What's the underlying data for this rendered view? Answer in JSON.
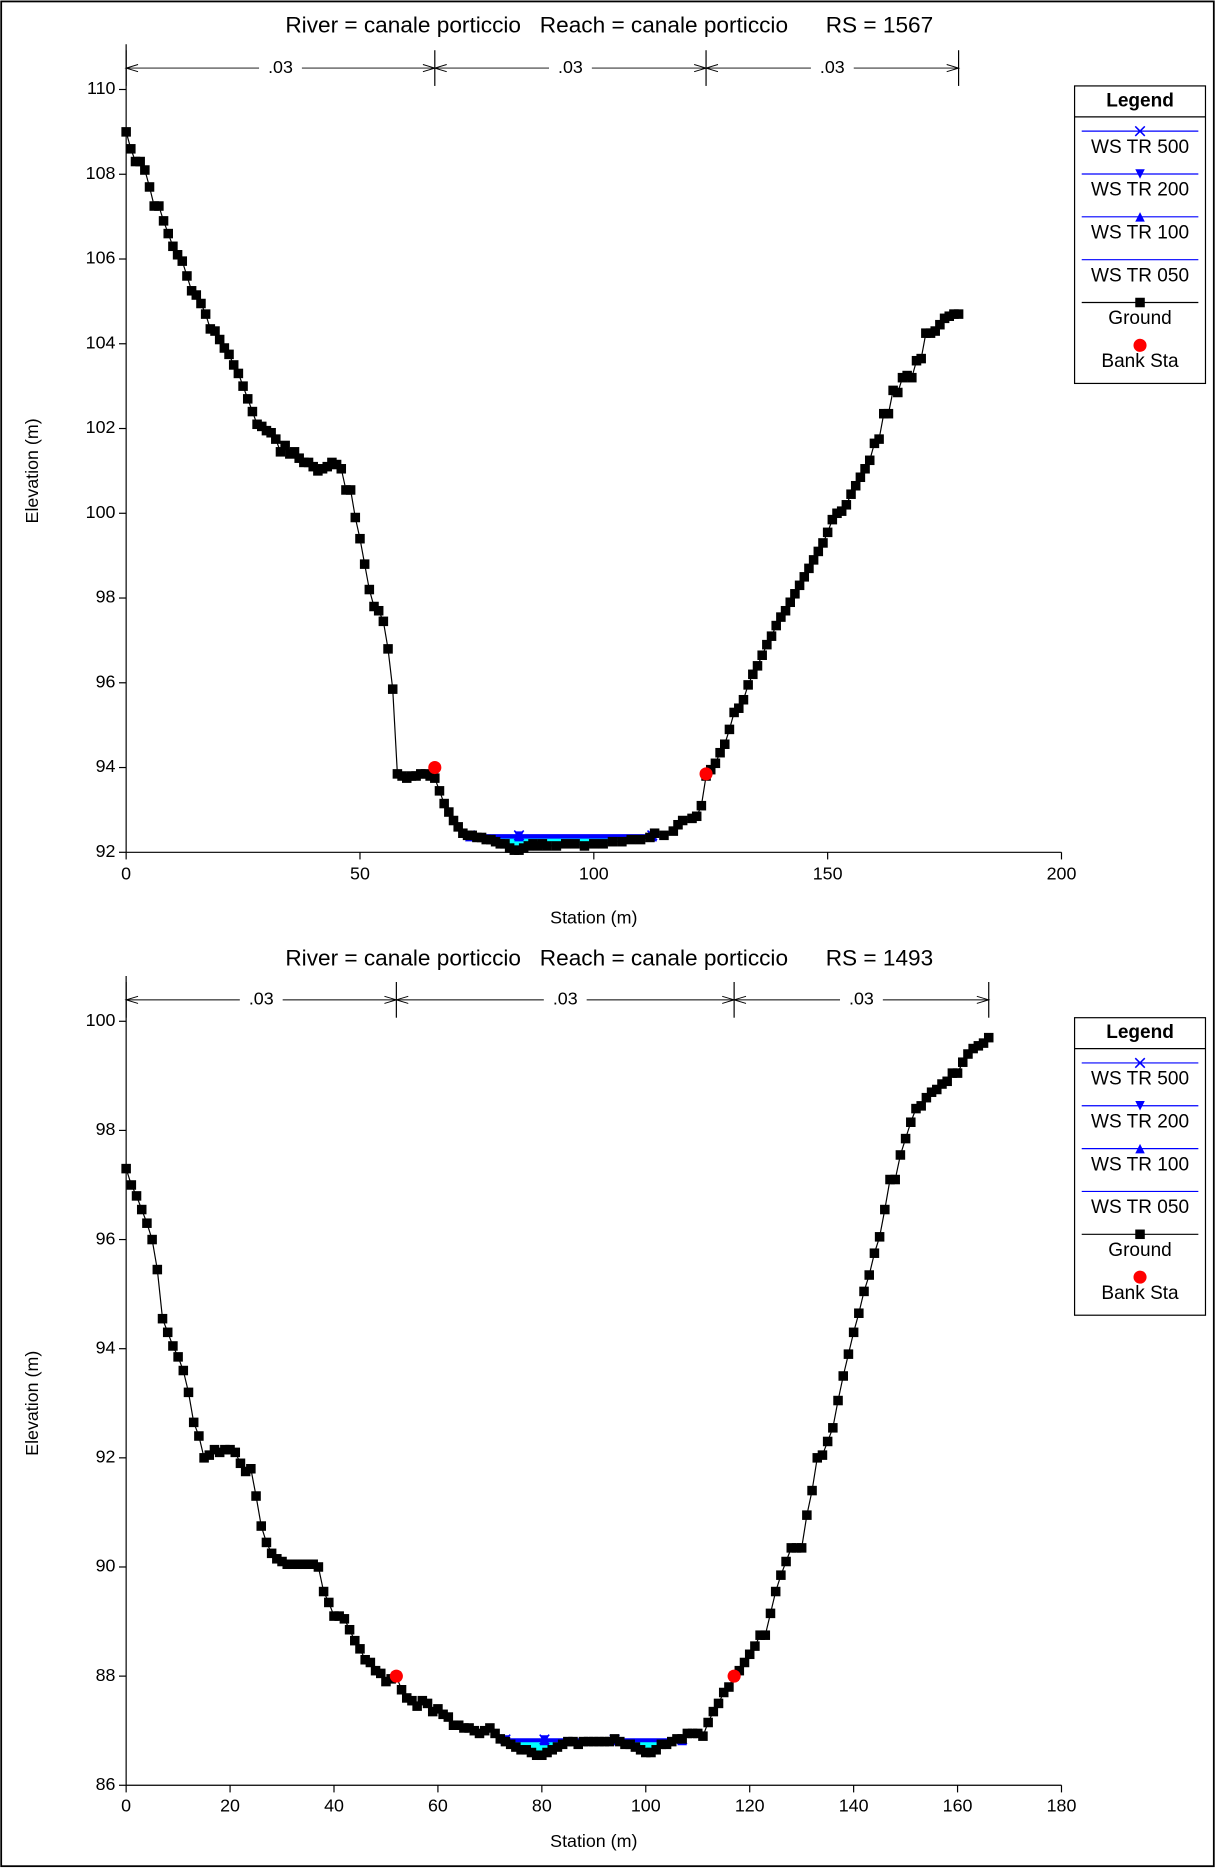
{
  "chart_data": [
    {
      "type": "line",
      "title": "River = canale porticcio   Reach = canale porticcio      RS = 1567",
      "xlabel": "Station (m)",
      "ylabel": "Elevation (m)",
      "xlim": [
        0,
        200
      ],
      "ylim": [
        92,
        110
      ],
      "xticks": [
        0,
        50,
        100,
        150,
        200
      ],
      "yticks": [
        92,
        94,
        96,
        98,
        100,
        102,
        104,
        106,
        108,
        110
      ],
      "legend": "right",
      "legend_title": "Legend",
      "n_values": [
        {
          "value": 0.03,
          "label": ".03"
        },
        {
          "value": 0.03,
          "label": ".03"
        },
        {
          "value": 0.03,
          "label": ".03"
        }
      ],
      "n_stations": [
        0,
        66,
        124,
        178
      ],
      "water_color": "#00ffff",
      "series": [
        {
          "name": "WS TR 500",
          "color": "#0000ff",
          "marker": "x",
          "x": [
            73.5,
            84,
            112.5
          ],
          "values": [
            92.4,
            92.4,
            92.4
          ]
        },
        {
          "name": "WS TR 200",
          "color": "#0000ff",
          "marker": "triangle-down",
          "x": [
            73.5,
            84,
            112.5
          ],
          "values": [
            92.38,
            92.38,
            92.38
          ]
        },
        {
          "name": "WS TR 100",
          "color": "#0000ff",
          "marker": "triangle-up",
          "x": [
            73.5,
            84,
            112.5
          ],
          "values": [
            92.37,
            92.37,
            92.37
          ]
        },
        {
          "name": "WS TR 050",
          "color": "#0000ff",
          "marker": "none",
          "x": [
            73.5,
            84,
            112.5
          ],
          "values": [
            92.35,
            92.35,
            92.35
          ]
        },
        {
          "name": "Ground",
          "color": "#000000",
          "marker": "square",
          "x": [
            0,
            1,
            2,
            3,
            4,
            5,
            6,
            7,
            8,
            9,
            10,
            11,
            12,
            13,
            14,
            15,
            16,
            17,
            18,
            19,
            20,
            21,
            22,
            23,
            24,
            25,
            26,
            27,
            28,
            29,
            30,
            31,
            32,
            33,
            34,
            35,
            36,
            37,
            38,
            39,
            40,
            41,
            42,
            43,
            44,
            45,
            46,
            47,
            48,
            49,
            50,
            51,
            52,
            53,
            54,
            55,
            56,
            57,
            58,
            59,
            60,
            61,
            62,
            63,
            64,
            65,
            66,
            67,
            68,
            69,
            70,
            71,
            72,
            73,
            74,
            75,
            76,
            77,
            78,
            79,
            80,
            81,
            82,
            83,
            84,
            85,
            86,
            87,
            88,
            89,
            90,
            92,
            94,
            96,
            98,
            100,
            102,
            104,
            106,
            108,
            110,
            112,
            113,
            115,
            117,
            118,
            119,
            121,
            122,
            123,
            124,
            125,
            126,
            127,
            128,
            129,
            130,
            131,
            132,
            133,
            134,
            135,
            136,
            137,
            138,
            139,
            140,
            141,
            142,
            143,
            144,
            145,
            146,
            147,
            148,
            149,
            150,
            151,
            152,
            153,
            154,
            155,
            156,
            157,
            158,
            159,
            160,
            161,
            162,
            163,
            164,
            165,
            166,
            167,
            168,
            169,
            170,
            171,
            172,
            173,
            174,
            175,
            176,
            177,
            178
          ],
          "values": [
            109.0,
            108.6,
            108.3,
            108.3,
            108.1,
            107.7,
            107.25,
            107.25,
            106.9,
            106.6,
            106.3,
            106.1,
            105.95,
            105.6,
            105.25,
            105.15,
            104.95,
            104.7,
            104.35,
            104.3,
            104.1,
            103.9,
            103.75,
            103.5,
            103.3,
            103.0,
            102.7,
            102.4,
            102.1,
            102.05,
            101.95,
            101.9,
            101.75,
            101.45,
            101.6,
            101.4,
            101.45,
            101.3,
            101.2,
            101.2,
            101.1,
            101.0,
            101.05,
            101.1,
            101.2,
            101.15,
            101.05,
            100.55,
            100.55,
            99.9,
            99.4,
            98.8,
            98.2,
            97.8,
            97.7,
            97.45,
            96.8,
            95.85,
            93.85,
            93.8,
            93.75,
            93.8,
            93.8,
            93.85,
            93.85,
            93.8,
            93.75,
            93.45,
            93.15,
            92.95,
            92.75,
            92.6,
            92.45,
            92.4,
            92.4,
            92.35,
            92.35,
            92.3,
            92.3,
            92.25,
            92.2,
            92.2,
            92.1,
            92.05,
            92.05,
            92.1,
            92.15,
            92.2,
            92.15,
            92.2,
            92.15,
            92.15,
            92.2,
            92.2,
            92.15,
            92.2,
            92.2,
            92.25,
            92.25,
            92.3,
            92.3,
            92.35,
            92.45,
            92.4,
            92.5,
            92.65,
            92.75,
            92.8,
            92.85,
            93.1,
            93.8,
            93.95,
            94.1,
            94.35,
            94.55,
            94.9,
            95.3,
            95.4,
            95.6,
            95.95,
            96.2,
            96.4,
            96.65,
            96.9,
            97.1,
            97.35,
            97.55,
            97.7,
            97.9,
            98.1,
            98.3,
            98.5,
            98.7,
            98.9,
            99.1,
            99.3,
            99.55,
            99.85,
            100.0,
            100.05,
            100.2,
            100.45,
            100.65,
            100.85,
            101.05,
            101.25,
            101.65,
            101.75,
            102.35,
            102.35,
            102.9,
            102.85,
            103.2,
            103.25,
            103.2,
            103.6,
            103.65,
            104.25,
            104.25,
            104.3,
            104.45,
            104.6,
            104.65,
            104.7,
            104.7
          ]
        },
        {
          "name": "Bank Sta",
          "color": "#ff0000",
          "marker": "circle",
          "linestyle": "none",
          "x": [
            66,
            124
          ],
          "values": [
            94.0,
            93.85
          ]
        }
      ]
    },
    {
      "type": "line",
      "title": "River = canale porticcio   Reach = canale porticcio      RS = 1493",
      "xlabel": "Station (m)",
      "ylabel": "Elevation (m)",
      "xlim": [
        0,
        180
      ],
      "ylim": [
        86,
        100
      ],
      "xticks": [
        0,
        20,
        40,
        60,
        80,
        100,
        120,
        140,
        160,
        180
      ],
      "yticks": [
        86,
        88,
        90,
        92,
        94,
        96,
        98,
        100
      ],
      "legend": "right",
      "legend_title": "Legend",
      "n_values": [
        {
          "value": 0.03,
          "label": ".03"
        },
        {
          "value": 0.03,
          "label": ".03"
        },
        {
          "value": 0.03,
          "label": ".03"
        }
      ],
      "n_stations": [
        0,
        52,
        117,
        166
      ],
      "water_color": "#00ffff",
      "series": [
        {
          "name": "WS TR 500",
          "color": "#0000ff",
          "marker": "x",
          "x": [
            73,
            80.5,
            94,
            107
          ],
          "values": [
            86.84,
            86.84,
            86.84,
            86.84
          ]
        },
        {
          "name": "WS TR 200",
          "color": "#0000ff",
          "marker": "triangle-down",
          "x": [
            73,
            80.5,
            94,
            107
          ],
          "values": [
            86.83,
            86.83,
            86.83,
            86.83
          ]
        },
        {
          "name": "WS TR 100",
          "color": "#0000ff",
          "marker": "triangle-up",
          "x": [
            73,
            80.5,
            94,
            107
          ],
          "values": [
            86.82,
            86.82,
            86.82,
            86.82
          ]
        },
        {
          "name": "WS TR 050",
          "color": "#0000ff",
          "marker": "none",
          "x": [
            73,
            80.5,
            94,
            107
          ],
          "values": [
            86.81,
            86.81,
            86.81,
            86.81
          ]
        },
        {
          "name": "Ground",
          "color": "#000000",
          "marker": "square",
          "x": [
            0,
            1,
            2,
            3,
            4,
            5,
            6,
            7,
            8,
            9,
            10,
            11,
            12,
            13,
            14,
            15,
            16,
            17,
            18,
            19,
            20,
            21,
            22,
            23,
            24,
            25,
            26,
            27,
            28,
            29,
            30,
            31,
            32,
            33,
            34,
            35,
            36,
            37,
            38,
            39,
            40,
            41,
            42,
            43,
            44,
            45,
            46,
            47,
            48,
            49,
            50,
            51,
            52,
            53,
            54,
            55,
            56,
            57,
            58,
            59,
            60,
            61,
            62,
            63,
            64,
            65,
            66,
            67,
            68,
            69,
            70,
            71,
            72,
            73,
            74,
            75,
            76,
            77,
            78,
            79,
            80,
            81,
            82,
            83,
            84,
            85,
            86,
            87,
            88,
            89,
            90,
            91,
            92,
            93,
            94,
            95,
            96,
            97,
            98,
            99,
            100,
            101,
            102,
            103,
            104,
            105,
            106,
            107,
            108,
            109,
            110,
            111,
            112,
            113,
            114,
            115,
            116,
            117,
            118,
            119,
            120,
            121,
            122,
            123,
            124,
            125,
            126,
            127,
            128,
            129,
            130,
            131,
            132,
            133,
            134,
            135,
            136,
            137,
            138,
            139,
            140,
            141,
            142,
            143,
            144,
            145,
            146,
            147,
            148,
            149,
            150,
            151,
            152,
            153,
            154,
            155,
            156,
            157,
            158,
            159,
            160,
            161,
            162,
            163,
            164,
            165,
            166
          ],
          "values": [
            97.3,
            97.0,
            96.8,
            96.55,
            96.3,
            96.0,
            95.45,
            94.55,
            94.3,
            94.05,
            93.85,
            93.6,
            93.2,
            92.65,
            92.4,
            92.0,
            92.05,
            92.15,
            92.1,
            92.15,
            92.15,
            92.1,
            91.9,
            91.75,
            91.8,
            91.3,
            90.75,
            90.45,
            90.25,
            90.15,
            90.1,
            90.05,
            90.05,
            90.05,
            90.05,
            90.05,
            90.05,
            90.0,
            89.55,
            89.35,
            89.1,
            89.1,
            89.05,
            88.85,
            88.65,
            88.5,
            88.3,
            88.25,
            88.1,
            88.05,
            87.9,
            87.95,
            88.0,
            87.75,
            87.6,
            87.55,
            87.45,
            87.55,
            87.5,
            87.35,
            87.4,
            87.3,
            87.25,
            87.1,
            87.1,
            87.05,
            87.05,
            87.0,
            86.95,
            87.0,
            87.05,
            86.95,
            86.85,
            86.8,
            86.75,
            86.7,
            86.65,
            86.65,
            86.6,
            86.55,
            86.55,
            86.6,
            86.65,
            86.7,
            86.75,
            86.8,
            86.8,
            86.75,
            86.8,
            86.8,
            86.8,
            86.8,
            86.8,
            86.8,
            86.85,
            86.8,
            86.75,
            86.75,
            86.7,
            86.65,
            86.6,
            86.6,
            86.65,
            86.75,
            86.75,
            86.8,
            86.85,
            86.85,
            86.95,
            86.95,
            86.95,
            86.9,
            87.15,
            87.35,
            87.5,
            87.7,
            87.8,
            88.0,
            88.1,
            88.25,
            88.4,
            88.55,
            88.75,
            88.75,
            89.15,
            89.55,
            89.85,
            90.1,
            90.35,
            90.35,
            90.35,
            90.95,
            91.4,
            92.0,
            92.05,
            92.3,
            92.55,
            93.05,
            93.5,
            93.9,
            94.3,
            94.65,
            95.05,
            95.35,
            95.75,
            96.05,
            96.55,
            97.1,
            97.1,
            97.55,
            97.85,
            98.15,
            98.4,
            98.45,
            98.6,
            98.7,
            98.75,
            98.85,
            98.9,
            99.05,
            99.05,
            99.25,
            99.4,
            99.5,
            99.55,
            99.6,
            99.7
          ]
        },
        {
          "name": "Bank Sta",
          "color": "#ff0000",
          "marker": "circle",
          "linestyle": "none",
          "x": [
            52,
            117
          ],
          "values": [
            88.0,
            88.0
          ]
        }
      ]
    }
  ]
}
